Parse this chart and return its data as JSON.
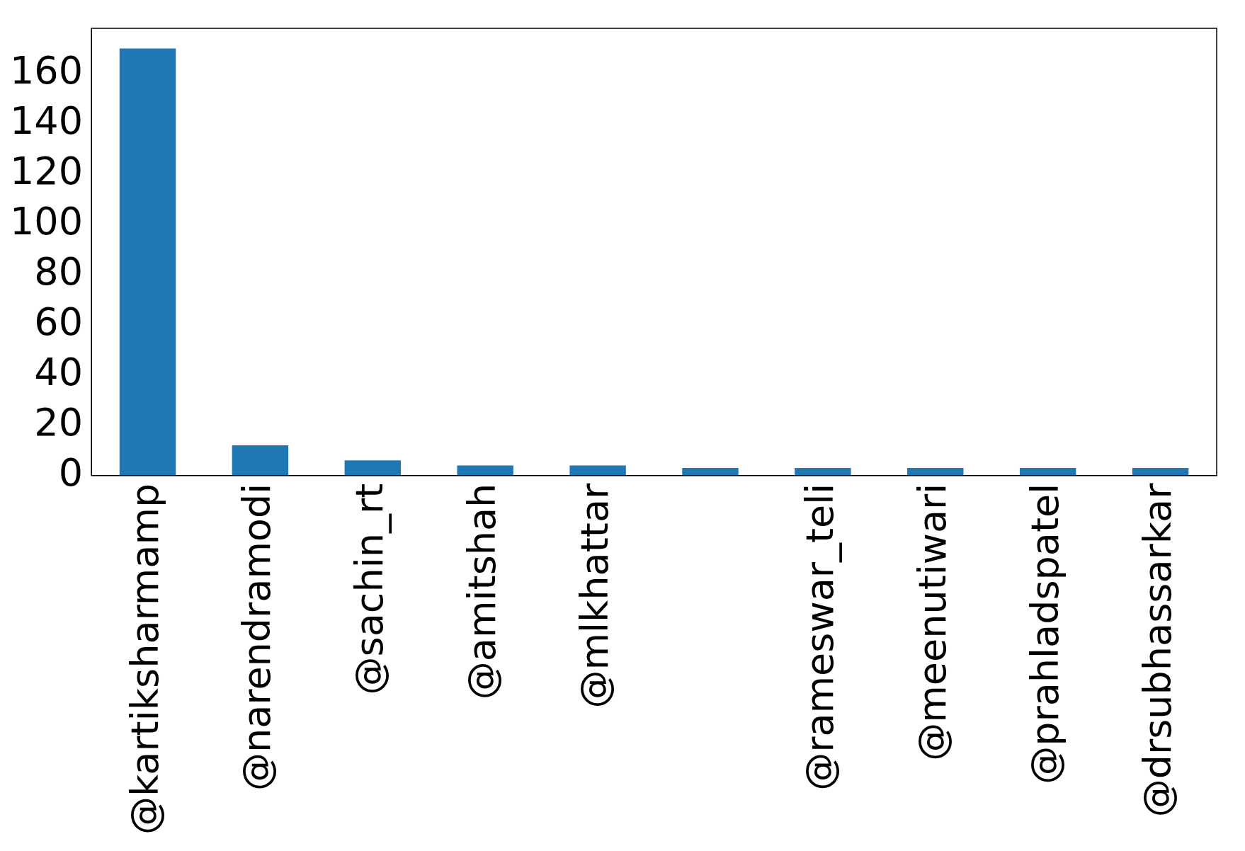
{
  "chart_data": {
    "type": "bar",
    "categories": [
      "@kartiksharmamp",
      "@narendramodi",
      "@sachin_rt",
      "@amitshah",
      "@mlkhattar",
      null,
      "@rameswar_teli",
      "@meenutiwari",
      "@prahladspatel",
      "@drsubhassarkar"
    ],
    "values": [
      170,
      12,
      6,
      4,
      4,
      3,
      3,
      3,
      3,
      3
    ],
    "color": "#1f77b4",
    "ylim": [
      0,
      178
    ],
    "yticks": [
      0,
      20,
      40,
      60,
      80,
      100,
      120,
      140,
      160
    ],
    "grid": false
  }
}
